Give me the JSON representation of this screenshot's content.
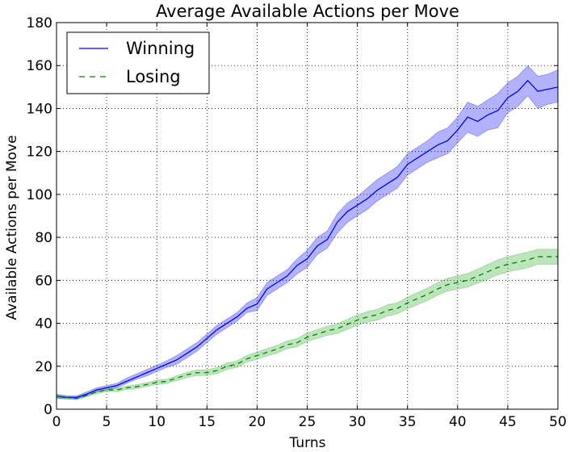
{
  "chart_data": {
    "type": "line",
    "title": "Average Available Actions per Move",
    "xlabel": "Turns",
    "ylabel": "Available Actions per Move",
    "xlim": [
      0,
      50
    ],
    "ylim": [
      0,
      180
    ],
    "xticks": [
      0,
      5,
      10,
      15,
      20,
      25,
      30,
      35,
      40,
      45,
      50
    ],
    "yticks": [
      0,
      20,
      40,
      60,
      80,
      100,
      120,
      140,
      160,
      180
    ],
    "grid": true,
    "legend_position": "top-left",
    "x": [
      0,
      1,
      2,
      3,
      4,
      5,
      6,
      7,
      8,
      9,
      10,
      11,
      12,
      13,
      14,
      15,
      16,
      17,
      18,
      19,
      20,
      21,
      22,
      23,
      24,
      25,
      26,
      27,
      28,
      29,
      30,
      31,
      32,
      33,
      34,
      35,
      36,
      37,
      38,
      39,
      40,
      41,
      42,
      43,
      44,
      45,
      46,
      47,
      48,
      49,
      50
    ],
    "series": [
      {
        "name": "Winning",
        "color": "#0000ff",
        "band_color": "#0000ff",
        "line_style": "solid",
        "values": [
          6,
          5.5,
          5.5,
          7,
          9,
          10,
          11,
          13,
          15,
          17,
          19,
          21,
          23,
          26,
          29,
          33,
          37,
          40,
          43,
          47,
          49,
          56,
          59,
          62,
          67,
          70,
          76,
          79,
          87,
          92,
          95,
          98,
          102,
          105,
          108,
          114,
          117,
          120,
          123,
          125,
          130,
          136,
          134,
          137,
          139,
          145,
          148,
          153,
          148,
          149,
          150
        ],
        "lower": [
          5,
          4.8,
          4.8,
          6.2,
          8,
          9,
          10,
          12,
          14,
          15.5,
          17.5,
          19.5,
          21,
          24,
          27,
          31,
          35,
          38,
          41,
          45,
          46,
          53,
          56,
          59,
          63,
          66,
          72,
          75,
          82,
          87,
          90,
          93,
          97,
          100,
          103,
          109,
          112,
          115,
          117,
          119,
          124,
          129,
          127,
          130,
          131,
          138,
          141,
          146,
          140,
          142,
          143
        ],
        "upper": [
          7,
          6.2,
          6.2,
          8,
          10,
          11,
          12,
          14.5,
          16.5,
          18.5,
          20.5,
          22.5,
          25,
          28,
          31,
          35,
          39,
          42,
          45,
          49.5,
          52,
          59,
          62,
          65,
          70,
          74,
          80,
          83,
          91,
          96,
          99,
          103,
          107,
          110,
          113,
          119,
          122,
          125,
          129,
          131,
          136,
          143,
          141,
          144,
          147,
          152,
          155,
          160,
          155,
          156,
          158
        ]
      },
      {
        "name": "Losing",
        "color": "#008000",
        "band_color": "#22a822",
        "line_style": "dashed",
        "values": [
          6,
          5.5,
          5,
          6.5,
          8,
          9,
          9,
          10,
          10.5,
          11.5,
          12.5,
          13,
          14.5,
          16,
          17,
          17,
          18,
          20,
          21,
          23.5,
          25,
          26.5,
          28,
          30,
          31,
          33.5,
          35,
          36.5,
          37.5,
          39.5,
          41.5,
          43,
          44,
          46,
          47,
          49.5,
          51.5,
          53.5,
          56,
          58,
          59,
          60,
          62,
          64,
          66,
          67.5,
          68.5,
          69.5,
          71,
          71,
          71
        ],
        "lower": [
          5.3,
          4.9,
          4.4,
          5.8,
          7.2,
          8.2,
          8.2,
          9.2,
          9.6,
          10.6,
          11.5,
          12,
          13.4,
          14.8,
          15.7,
          15.7,
          16.6,
          18.5,
          19.5,
          22,
          23.3,
          24.8,
          26.2,
          28.2,
          29.1,
          31.5,
          33,
          34.4,
          35.3,
          37.2,
          39.1,
          40.6,
          41.5,
          43.4,
          44.4,
          46.8,
          48.7,
          50.6,
          53.1,
          55,
          55.9,
          56.8,
          58.7,
          60.6,
          62.5,
          64,
          64.9,
          65.8,
          67.5,
          67.5,
          67.5
        ],
        "upper": [
          6.7,
          6.1,
          5.6,
          7.2,
          8.8,
          9.8,
          9.8,
          10.8,
          11.4,
          12.4,
          13.5,
          14,
          15.6,
          17.2,
          18.3,
          18.3,
          19.4,
          21.5,
          22.5,
          25,
          26.7,
          28.2,
          29.8,
          31.8,
          32.9,
          35.5,
          37,
          38.6,
          39.7,
          41.8,
          43.9,
          45.4,
          46.5,
          48.6,
          49.6,
          52.2,
          54.3,
          56.4,
          58.9,
          61,
          62.1,
          63.2,
          65.3,
          67.4,
          69.5,
          71,
          72.1,
          73.2,
          74.5,
          74.5,
          74.5
        ]
      }
    ]
  }
}
